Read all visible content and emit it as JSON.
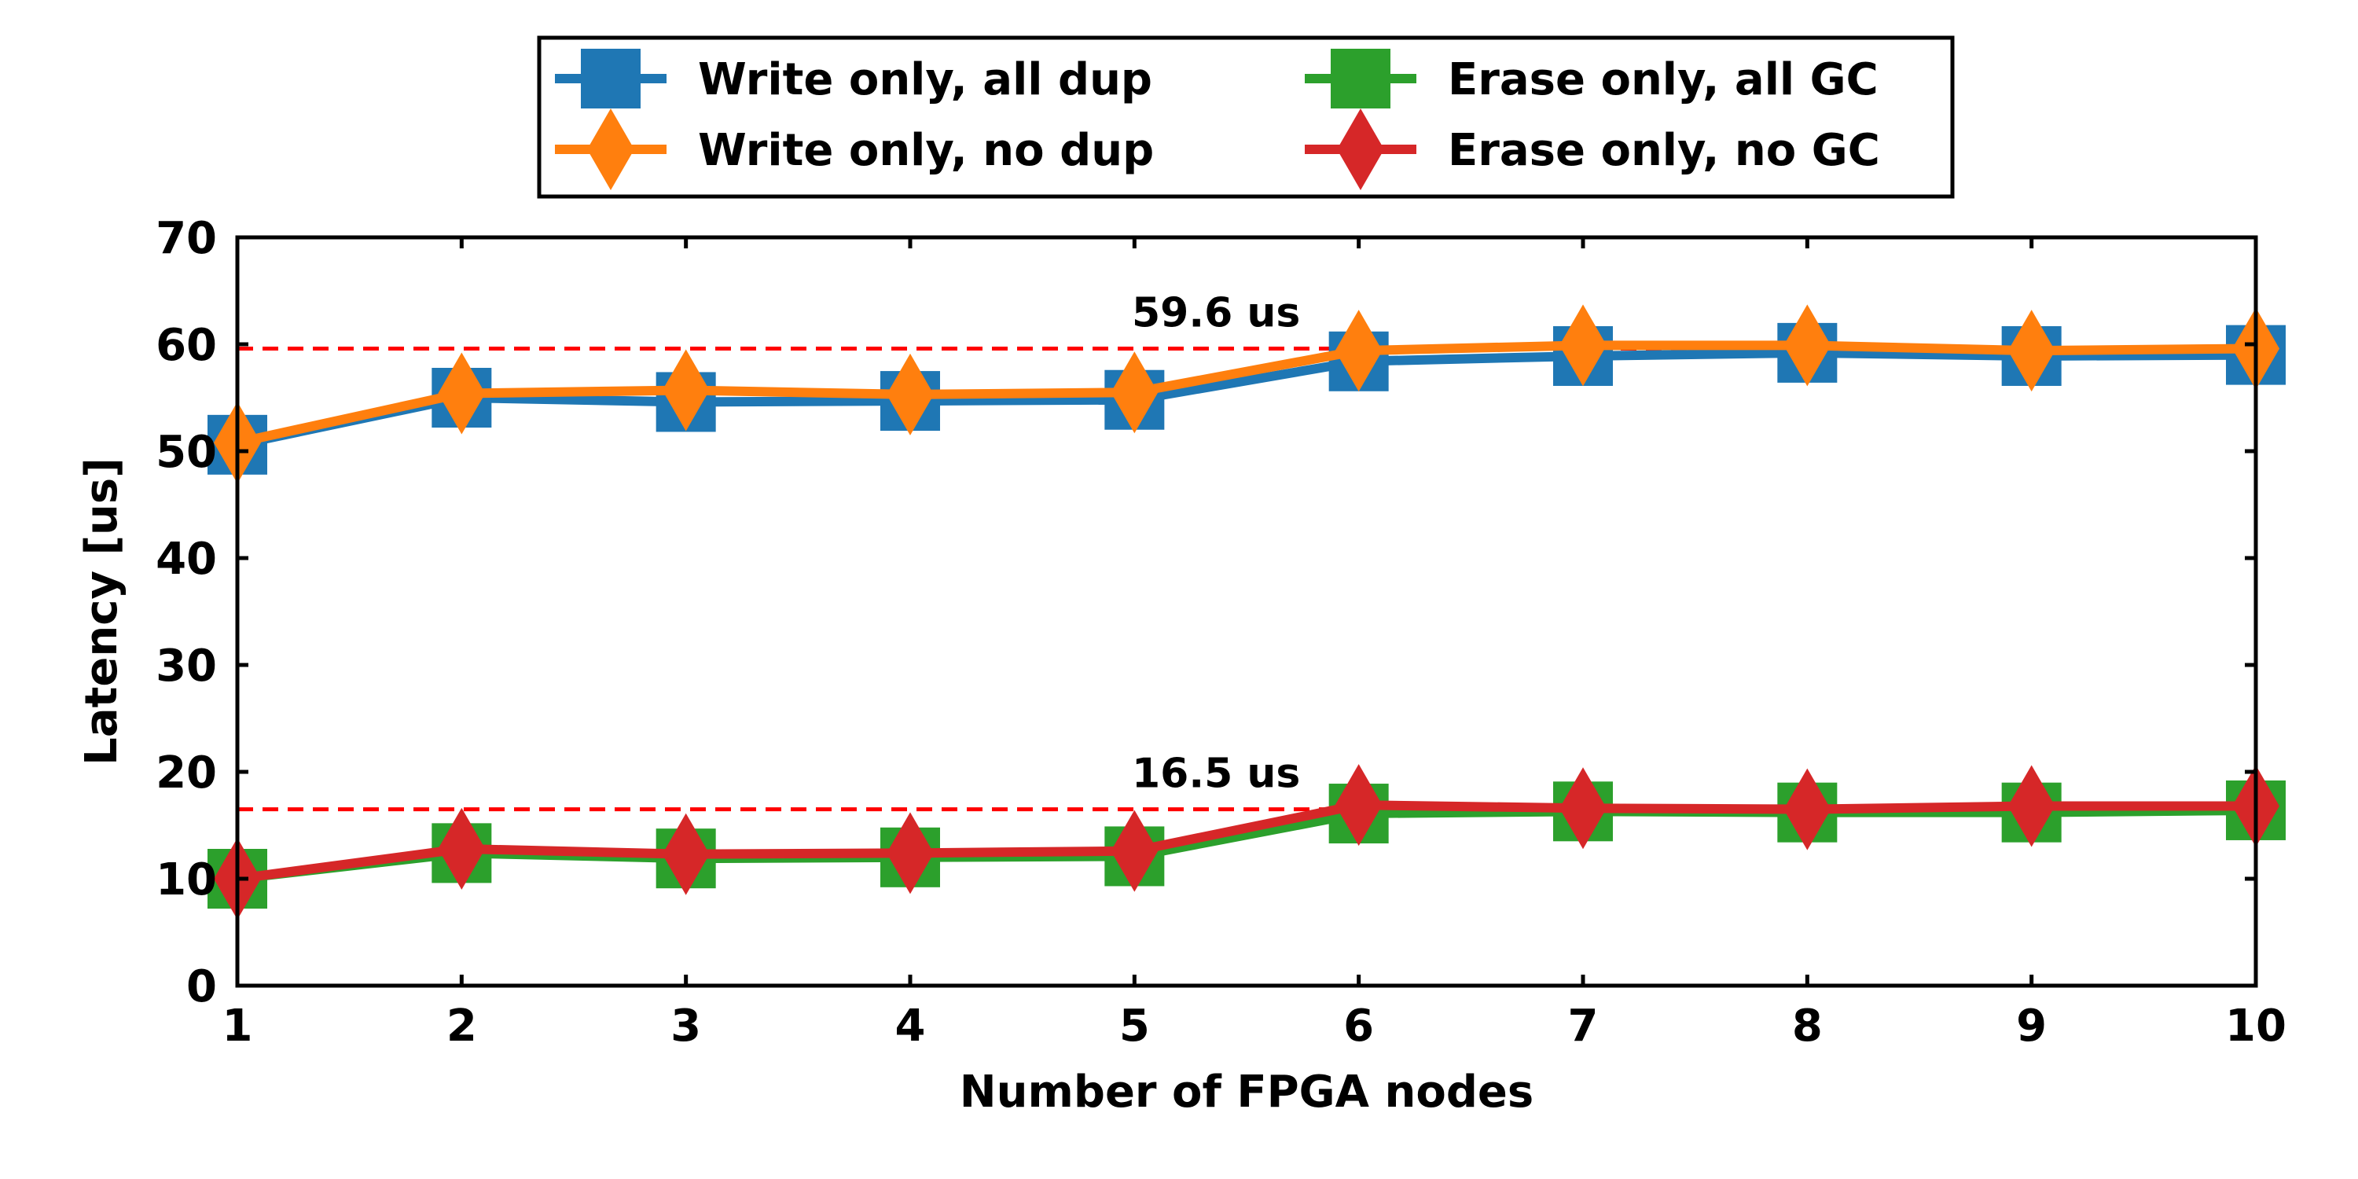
{
  "chart_data": {
    "type": "line",
    "xlabel": "Number of FPGA nodes",
    "ylabel": "Latency [us]",
    "x": [
      1,
      2,
      3,
      4,
      5,
      6,
      7,
      8,
      9,
      10
    ],
    "xlim": [
      1,
      10
    ],
    "ylim": [
      0,
      70
    ],
    "yticks": [
      0,
      10,
      20,
      30,
      40,
      50,
      60,
      70
    ],
    "xticks": [
      1,
      2,
      3,
      4,
      5,
      6,
      7,
      8,
      9,
      10
    ],
    "grid": false,
    "legend_position": "top-center",
    "series": [
      {
        "name": "Write only, all dup",
        "marker": "square",
        "color": "#1f77b4",
        "values": [
          50.6,
          55.0,
          54.6,
          54.7,
          54.8,
          58.4,
          58.9,
          59.2,
          58.9,
          59.0
        ]
      },
      {
        "name": "Write only, no dup",
        "marker": "diamond",
        "color": "#ff7f0e",
        "values": [
          50.8,
          55.4,
          55.7,
          55.3,
          55.5,
          59.4,
          59.9,
          59.9,
          59.4,
          59.6
        ]
      },
      {
        "name": "Erase only, all GC",
        "marker": "square",
        "color": "#2ca02c",
        "values": [
          10.0,
          12.4,
          11.9,
          12.0,
          12.1,
          16.1,
          16.3,
          16.2,
          16.2,
          16.4
        ]
      },
      {
        "name": "Erase only, no GC",
        "marker": "diamond",
        "color": "#d62728",
        "values": [
          10.0,
          12.8,
          12.3,
          12.4,
          12.6,
          16.9,
          16.6,
          16.5,
          16.8,
          16.8
        ]
      }
    ],
    "reference_lines": [
      {
        "y": 59.6,
        "label": "59.6 us",
        "color": "#ff0000"
      },
      {
        "y": 16.5,
        "label": "16.5 us",
        "color": "#ff0000"
      }
    ]
  }
}
